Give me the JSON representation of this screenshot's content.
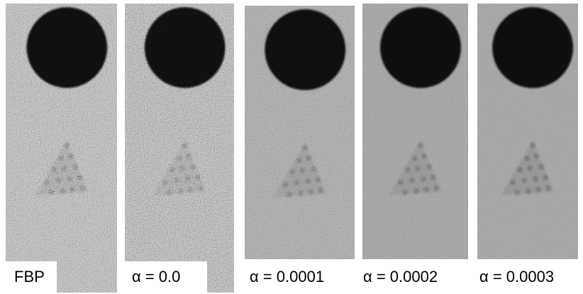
{
  "panels": [
    {
      "label": "FBP"
    },
    {
      "label": "α = 0.0"
    },
    {
      "label": "α = 0.0001"
    },
    {
      "label": "α = 0.0002"
    },
    {
      "label": "α = 0.0003"
    }
  ]
}
